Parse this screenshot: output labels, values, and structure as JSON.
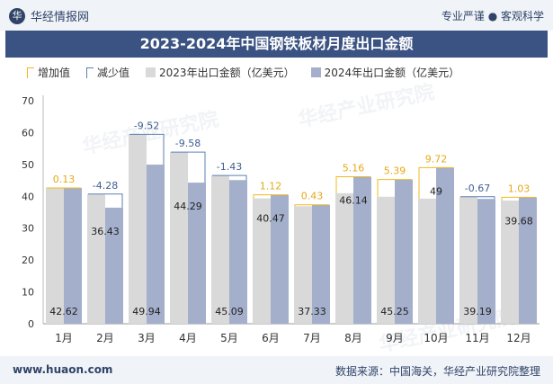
{
  "header": {
    "brand": "华经情报网",
    "logo_text": "华",
    "slogan": "专业严谨 ● 客观科学"
  },
  "title": "2023-2024年中国钢铁板材月度出口金额",
  "legend": {
    "increase": "增加值",
    "decrease": "减少值",
    "s2023": "2023年出口金额（亿美元）",
    "s2024": "2024年出口金额（亿美元）"
  },
  "footer": {
    "site": "www.huaon.com",
    "source": "数据来源：中国海关，华经产业研究院整理"
  },
  "watermark": "华经产业研究院",
  "colors": {
    "bar2023": "#d9d9d9",
    "bar2024": "#a4afcc",
    "increase": "#f3b91c",
    "decrease": "#5b80b2",
    "title_bg": "#3b5382"
  },
  "chart_data": {
    "type": "bar",
    "categories": [
      "1月",
      "2月",
      "3月",
      "4月",
      "5月",
      "6月",
      "7月",
      "8月",
      "9月",
      "10月",
      "11月",
      "12月"
    ],
    "series": [
      {
        "name": "2023年出口金额（亿美元）",
        "values": [
          42.49,
          40.71,
          59.46,
          53.87,
          46.52,
          39.35,
          36.9,
          40.98,
          39.86,
          39.28,
          39.86,
          38.65
        ]
      },
      {
        "name": "2024年出口金额（亿美元）",
        "values": [
          42.62,
          36.43,
          49.94,
          44.29,
          45.09,
          40.47,
          37.33,
          46.14,
          45.25,
          49,
          39.19,
          39.68
        ]
      }
    ],
    "change": {
      "labels": [
        "0.13",
        "-4.28",
        "-9.52",
        "-9.58",
        "-1.43",
        "1.12",
        "0.43",
        "5.16",
        "5.39",
        "9.72",
        "-0.67",
        "1.03"
      ],
      "values": [
        0.13,
        -4.28,
        -9.52,
        -9.58,
        -1.43,
        1.12,
        0.43,
        5.16,
        5.39,
        9.72,
        -0.67,
        1.03
      ]
    },
    "value_labels": [
      "42.62",
      "36.43",
      "49.94",
      "44.29",
      "45.09",
      "40.47",
      "37.33",
      "46.14",
      "45.25",
      "49",
      "39.19",
      "39.68"
    ],
    "yticks": [
      "0",
      "10",
      "20",
      "30",
      "40",
      "50",
      "60",
      "70"
    ],
    "ylim": [
      0,
      70
    ],
    "grid": false,
    "legend_position": "top-left"
  }
}
